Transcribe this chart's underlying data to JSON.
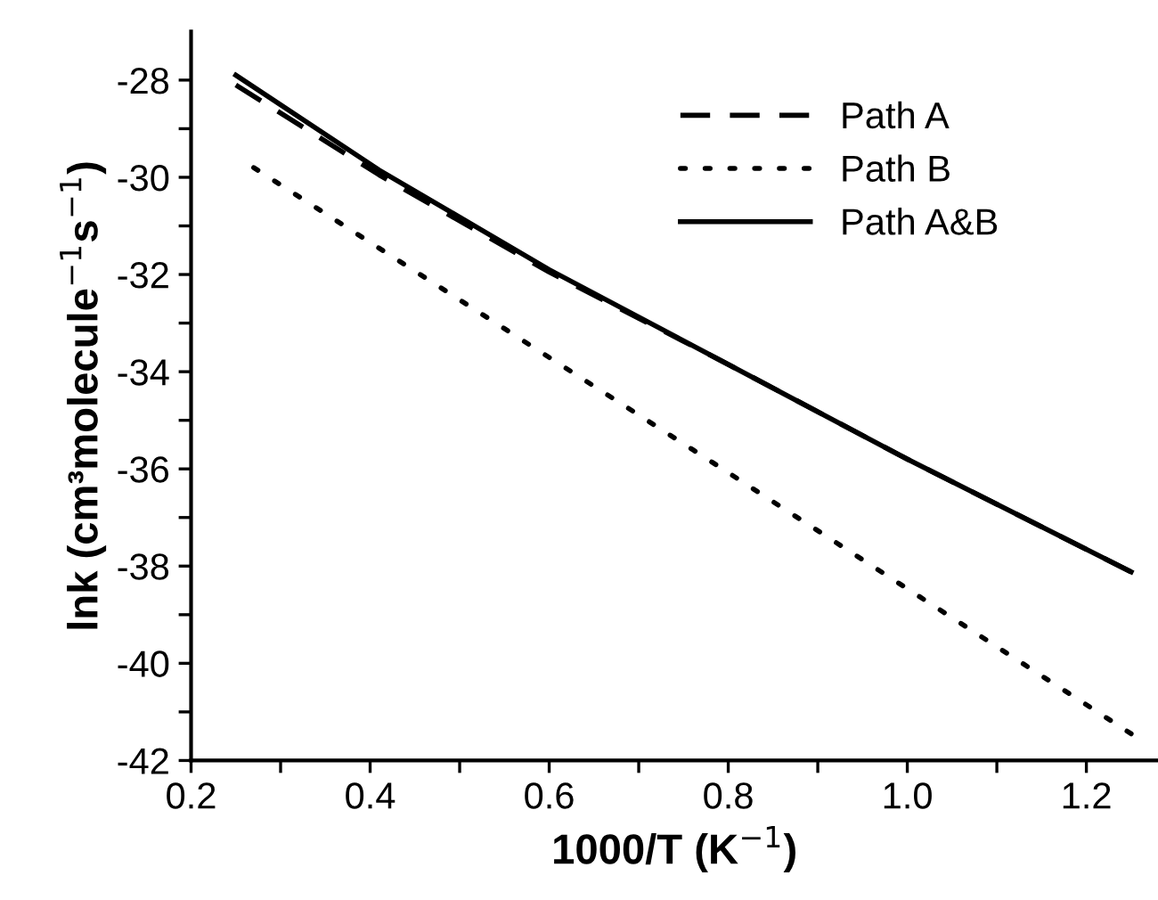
{
  "chart_data": {
    "type": "line",
    "xlabel": "1000/T (K$^{−1}$)",
    "ylabel": "lnk (cm³molecule$^{−1}$s$^{−1}$)",
    "xlim": [
      0.2,
      1.28
    ],
    "ylim": [
      -42,
      -27
    ],
    "xticks": [
      0.2,
      {
        "value": 0.3,
        "label": null
      },
      0.4,
      {
        "value": 0.5,
        "label": null
      },
      0.6,
      {
        "value": 0.7,
        "label": null
      },
      0.8,
      {
        "value": 0.9,
        "label": null
      },
      {
        "value": 1.0,
        "label": "1.0"
      },
      {
        "value": 1.1,
        "label": null
      },
      1.2
    ],
    "yticks": [
      -42,
      {
        "value": -41,
        "label": null
      },
      -40,
      {
        "value": -39,
        "label": null
      },
      -38,
      {
        "value": -37,
        "label": null
      },
      -36,
      {
        "value": -35,
        "label": null
      },
      -34,
      {
        "value": -33,
        "label": null
      },
      -32,
      {
        "value": -31,
        "label": null
      },
      -30,
      {
        "value": -29,
        "label": null
      },
      -28
    ],
    "grid": false,
    "legend": "top right",
    "marker": "none",
    "series": [
      {
        "name": "Path A",
        "color": "#000000",
        "line_style": "dashed",
        "x": [
          0.25,
          0.41,
          0.6,
          0.8,
          1.0,
          1.25
        ],
        "values": [
          -28.1,
          -29.95,
          -31.95,
          -33.85,
          -35.8,
          -38.12
        ]
      },
      {
        "name": "Path B",
        "color": "#000000",
        "line_style": "dotted",
        "x": [
          0.27,
          0.76,
          1.25
        ],
        "values": [
          -29.8,
          -35.6,
          -41.45
        ]
      },
      {
        "name": "Path A&B",
        "color": "#000000",
        "line_style": "solid",
        "x": [
          0.25,
          0.41,
          0.6,
          0.8,
          1.0,
          1.25
        ],
        "values": [
          -27.9,
          -29.85,
          -31.9,
          -33.85,
          -35.8,
          -38.12
        ]
      }
    ]
  }
}
